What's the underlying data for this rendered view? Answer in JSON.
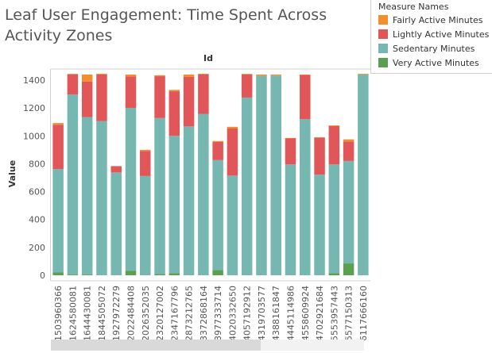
{
  "title": "Leaf User Engagement: Time Spent Across Activity Zones",
  "legend": {
    "title": "Measure Names",
    "items": [
      {
        "label": "Fairly Active Minutes",
        "color": "#f28e2b"
      },
      {
        "label": "Lightly Active Minutes",
        "color": "#e15759"
      },
      {
        "label": "Sedentary Minutes",
        "color": "#76b7b2"
      },
      {
        "label": "Very Active Minutes",
        "color": "#59a14f"
      }
    ]
  },
  "chart_data": {
    "type": "bar",
    "stacked": true,
    "column_header": "Id",
    "ylabel": "Value",
    "ylim": [
      0,
      1440
    ],
    "yticks": [
      0,
      200,
      400,
      600,
      800,
      1000,
      1200,
      1400
    ],
    "grid": false,
    "categories": [
      "1503960366",
      "1624580081",
      "1644430081",
      "1844505072",
      "1927972279",
      "2022484408",
      "2026352035",
      "2320127002",
      "2347167796",
      "2873212765",
      "3372868164",
      "3977333714",
      "4020332650",
      "4057192912",
      "4319703577",
      "4388161847",
      "4445114986",
      "4558609924",
      "4702921684",
      "5553957443",
      "5577150313",
      "6117666160"
    ],
    "series": [
      {
        "name": "Very Active Minutes",
        "values": [
          20,
          5,
          5,
          0,
          0,
          33,
          0,
          10,
          15,
          0,
          0,
          38,
          0,
          0,
          0,
          0,
          0,
          0,
          0,
          15,
          85,
          0
        ]
      },
      {
        "name": "Sedentary Minutes",
        "values": [
          742,
          1292,
          1130,
          1106,
          738,
          1168,
          712,
          1118,
          985,
          1068,
          1158,
          788,
          715,
          1275,
          1432,
          1433,
          795,
          1120,
          722,
          780,
          735,
          1440
        ]
      },
      {
        "name": "Lightly Active Minutes",
        "values": [
          318,
          145,
          255,
          335,
          45,
          225,
          180,
          300,
          320,
          355,
          285,
          130,
          338,
          165,
          0,
          0,
          188,
          318,
          265,
          275,
          140,
          0
        ]
      },
      {
        "name": "Fairly Active Minutes",
        "values": [
          12,
          3,
          50,
          5,
          0,
          14,
          8,
          7,
          10,
          17,
          2,
          7,
          12,
          5,
          8,
          7,
          2,
          2,
          3,
          5,
          15,
          5
        ]
      }
    ]
  }
}
